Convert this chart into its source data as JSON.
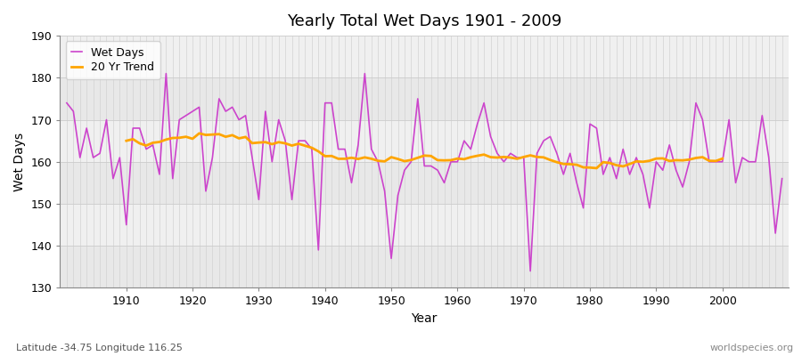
{
  "title": "Yearly Total Wet Days 1901 - 2009",
  "xlabel": "Year",
  "ylabel": "Wet Days",
  "subtitle": "Latitude -34.75 Longitude 116.25",
  "watermark": "worldspecies.org",
  "ylim": [
    130,
    190
  ],
  "yticks": [
    130,
    140,
    150,
    160,
    170,
    180,
    190
  ],
  "xticks": [
    1910,
    1920,
    1930,
    1940,
    1950,
    1960,
    1970,
    1980,
    1990,
    2000
  ],
  "years": [
    1901,
    1902,
    1903,
    1904,
    1905,
    1906,
    1907,
    1908,
    1909,
    1910,
    1911,
    1912,
    1913,
    1914,
    1915,
    1916,
    1917,
    1918,
    1919,
    1920,
    1921,
    1922,
    1923,
    1924,
    1925,
    1926,
    1927,
    1928,
    1929,
    1930,
    1931,
    1932,
    1933,
    1934,
    1935,
    1936,
    1937,
    1938,
    1939,
    1940,
    1941,
    1942,
    1943,
    1944,
    1945,
    1946,
    1947,
    1948,
    1949,
    1950,
    1951,
    1952,
    1953,
    1954,
    1955,
    1956,
    1957,
    1958,
    1959,
    1960,
    1961,
    1962,
    1963,
    1964,
    1965,
    1966,
    1967,
    1968,
    1969,
    1970,
    1971,
    1972,
    1973,
    1974,
    1975,
    1976,
    1977,
    1978,
    1979,
    1980,
    1981,
    1982,
    1983,
    1984,
    1985,
    1986,
    1987,
    1988,
    1989,
    1990,
    1991,
    1992,
    1993,
    1994,
    1995,
    1996,
    1997,
    1998,
    1999,
    2000,
    2001,
    2002,
    2003,
    2004,
    2005,
    2006,
    2007,
    2008,
    2009
  ],
  "wet_days": [
    174,
    172,
    161,
    168,
    161,
    162,
    170,
    156,
    161,
    145,
    168,
    168,
    163,
    164,
    157,
    181,
    156,
    170,
    171,
    172,
    173,
    153,
    161,
    175,
    172,
    173,
    170,
    171,
    161,
    151,
    172,
    160,
    170,
    165,
    151,
    165,
    165,
    163,
    139,
    174,
    174,
    163,
    163,
    155,
    164,
    181,
    163,
    160,
    153,
    137,
    152,
    158,
    160,
    175,
    159,
    159,
    158,
    155,
    160,
    160,
    165,
    163,
    169,
    174,
    166,
    162,
    160,
    162,
    161,
    161,
    134,
    162,
    165,
    166,
    162,
    157,
    162,
    155,
    149,
    169,
    168,
    157,
    161,
    156,
    163,
    157,
    161,
    157,
    149,
    160,
    158,
    164,
    158,
    154,
    160,
    174,
    170,
    160,
    160,
    160,
    170,
    155,
    161,
    160,
    160,
    171,
    161,
    143,
    156
  ],
  "wet_days_color": "#CC44CC",
  "trend_color": "#FFA500",
  "bg_color": "#FFFFFF",
  "plot_bg_color": "#FFFFFF",
  "band_color_dark": "#E8E8E8",
  "band_color_light": "#F0F0F0",
  "grid_color": "#CCCCCC",
  "legend_labels": [
    "Wet Days",
    "20 Yr Trend"
  ],
  "trend_window": 20
}
